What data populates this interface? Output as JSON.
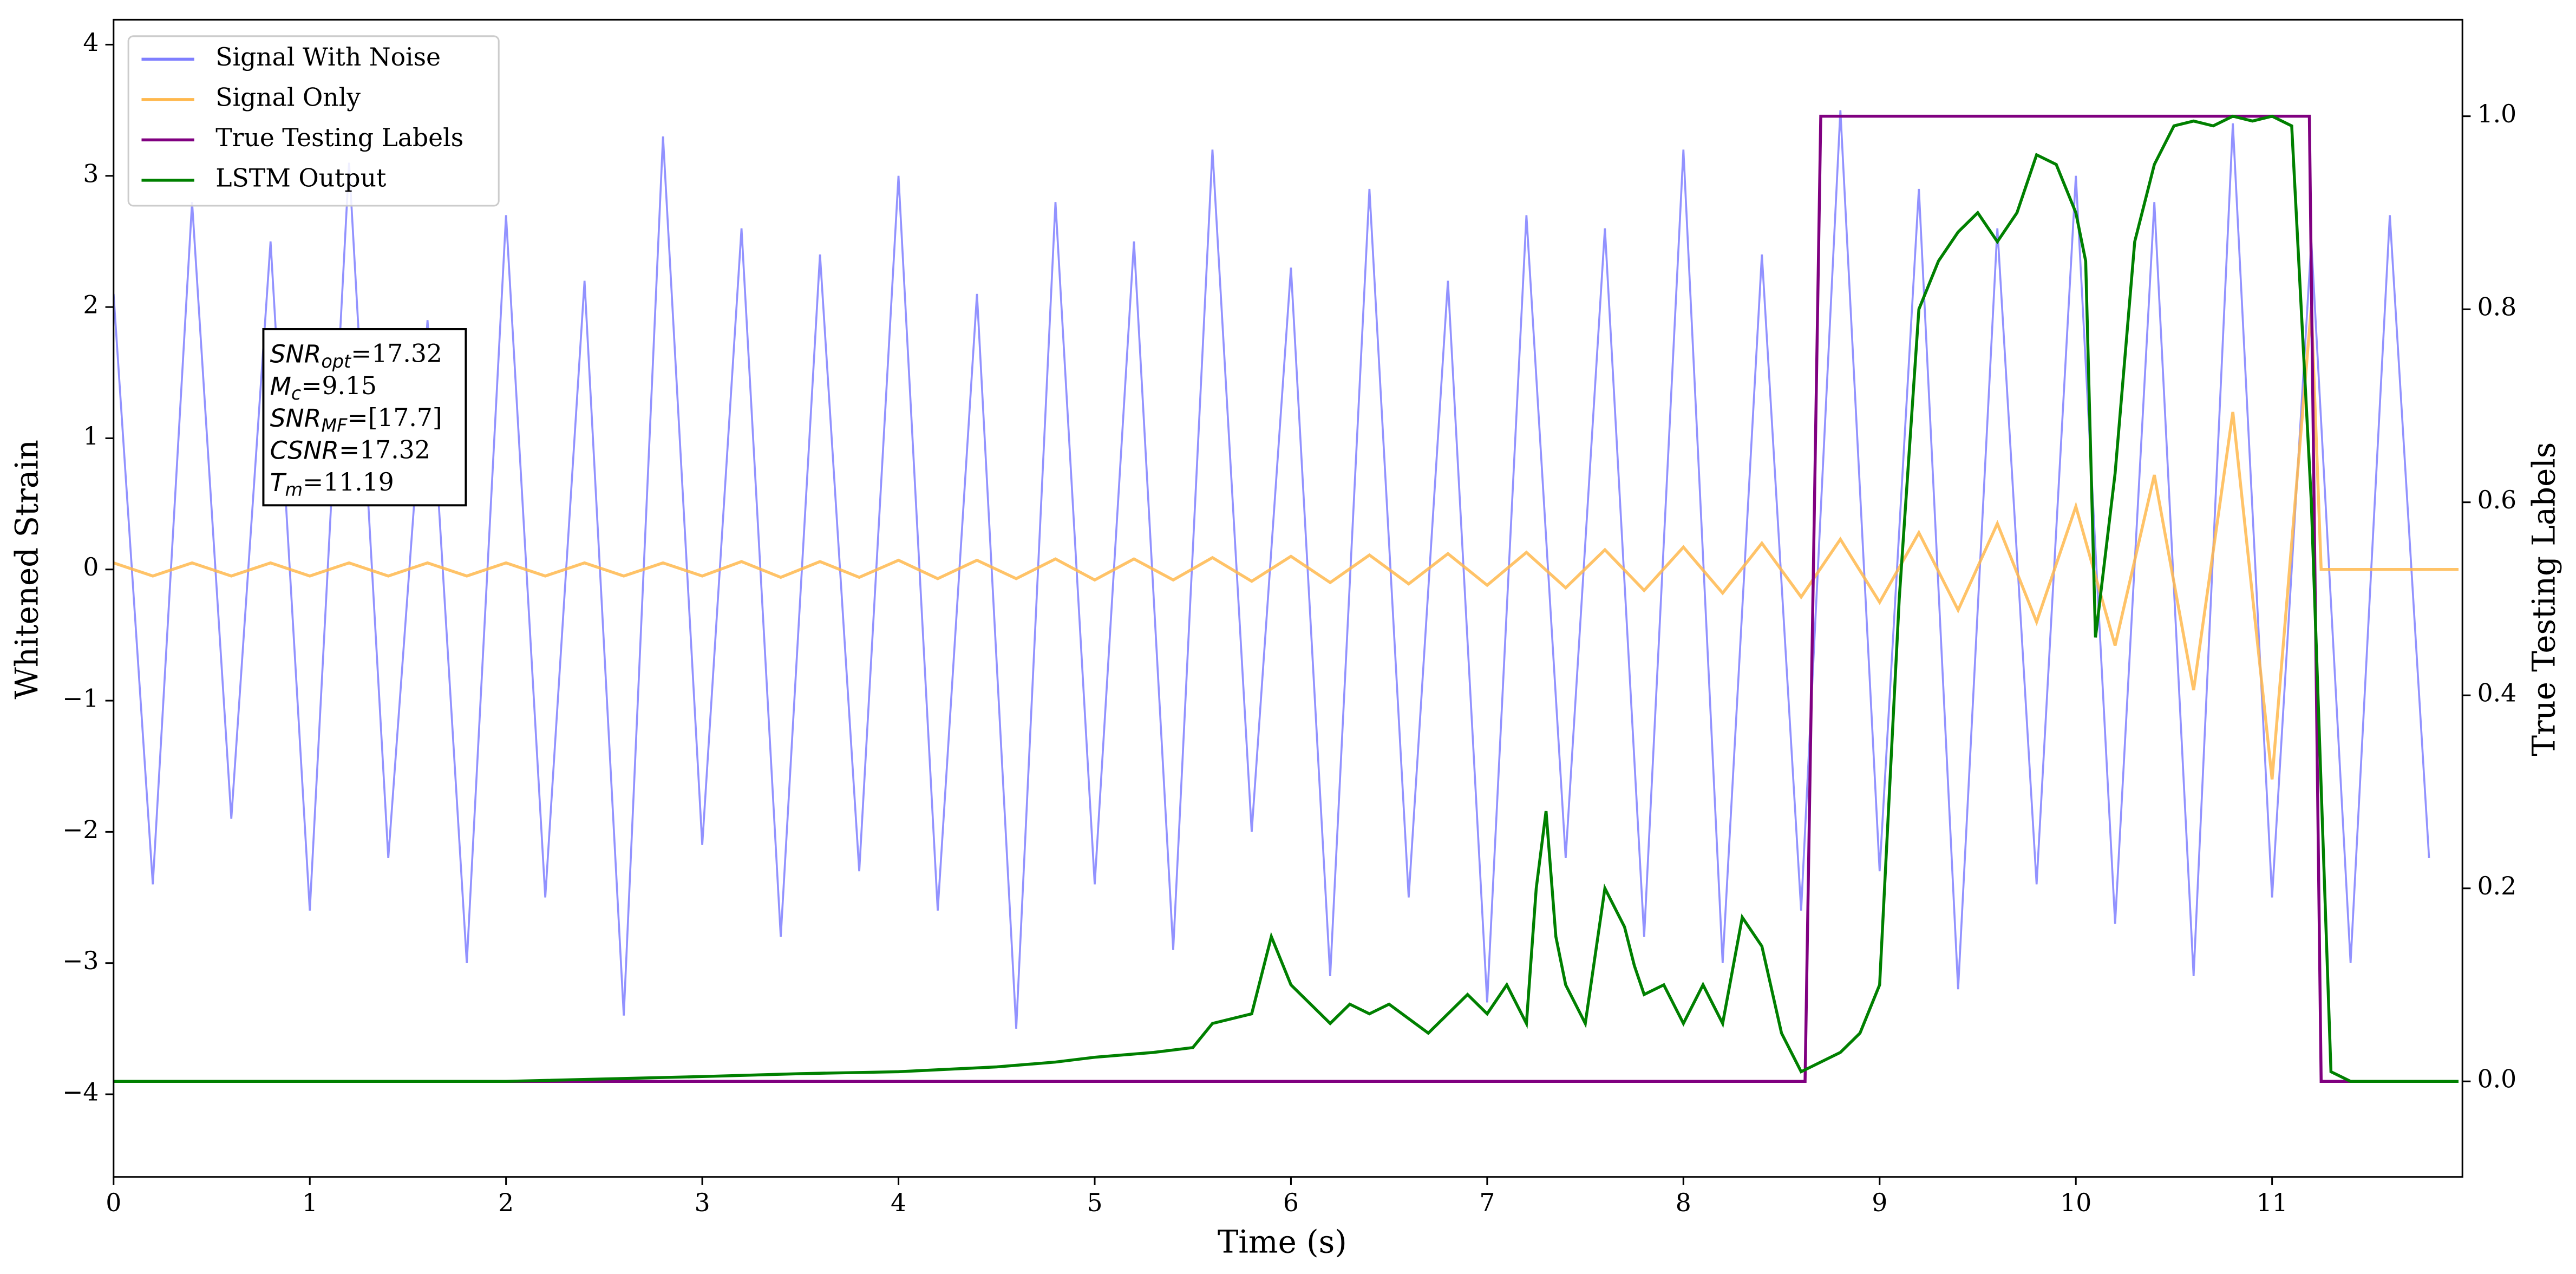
{
  "chart_data": {
    "type": "line",
    "xlabel": "Time (s)",
    "ylabel": "Whitened Strain",
    "y2label": "True Testing Labels",
    "xlim": [
      0,
      11.97
    ],
    "xticks": [
      0,
      1,
      2,
      3,
      4,
      5,
      6,
      7,
      8,
      9,
      10,
      11
    ],
    "ylim": [
      -4.63,
      4.19
    ],
    "yticks": [
      {
        "value": -4,
        "label": "−4"
      },
      {
        "value": -3,
        "label": "−3"
      },
      {
        "value": -2,
        "label": "−2"
      },
      {
        "value": -1,
        "label": "−1"
      },
      0,
      1,
      2,
      3,
      4
    ],
    "y2lim": [
      -0.099,
      1.1
    ],
    "y2ticks": [
      {
        "value": 0,
        "label": "0.0"
      },
      {
        "value": 0.2,
        "label": "0.2"
      },
      {
        "value": 0.4,
        "label": "0.4"
      },
      {
        "value": 0.6,
        "label": "0.6"
      },
      {
        "value": 0.8,
        "label": "0.8"
      },
      {
        "value": 1,
        "label": "1.0"
      }
    ],
    "legend": "upper left",
    "annotation": [
      {
        "symbol": "SNR",
        "sub": "opt",
        "text": "=17.32"
      },
      {
        "symbol": "M",
        "sub": "c",
        "text": "=9.15"
      },
      {
        "symbol": "SNR",
        "sub": "MF",
        "text": "=[17.7]"
      },
      {
        "symbol": "CSNR",
        "sub": null,
        "text": "=17.32"
      },
      {
        "symbol": "T",
        "sub": "m",
        "text": "=11.19"
      }
    ],
    "series": [
      {
        "name": "Signal With Noise",
        "color": "#7f7fff",
        "axis": "y",
        "x": [
          0,
          0.2,
          0.4,
          0.6,
          0.8,
          1,
          1.2,
          1.4,
          1.6,
          1.8,
          2,
          2.2,
          2.4,
          2.6,
          2.8,
          3,
          3.2,
          3.4,
          3.6,
          3.8,
          4,
          4.2,
          4.4,
          4.6,
          4.8,
          5,
          5.2,
          5.4,
          5.6,
          5.8,
          6,
          6.2,
          6.4,
          6.6,
          6.8,
          7,
          7.2,
          7.4,
          7.6,
          7.8,
          8,
          8.2,
          8.4,
          8.6,
          8.8,
          9,
          9.2,
          9.4,
          9.6,
          9.8,
          10,
          10.2,
          10.4,
          10.6,
          10.8,
          11,
          11.2,
          11.4,
          11.6,
          11.8
        ],
        "values": [
          2.1,
          -2.4,
          2.8,
          -1.9,
          2.5,
          -2.6,
          3.1,
          -2.2,
          1.9,
          -3.0,
          2.7,
          -2.5,
          2.2,
          -3.4,
          3.3,
          -2.1,
          2.6,
          -2.8,
          2.4,
          -2.3,
          3.0,
          -2.6,
          2.1,
          -3.5,
          2.8,
          -2.4,
          2.5,
          -2.9,
          3.2,
          -2.0,
          2.3,
          -3.1,
          2.9,
          -2.5,
          2.2,
          -3.3,
          2.7,
          -2.2,
          2.6,
          -2.8,
          3.2,
          -3.0,
          2.4,
          -2.6,
          3.5,
          -2.3,
          2.9,
          -3.2,
          2.6,
          -2.4,
          3.0,
          -2.7,
          2.8,
          -3.1,
          3.4,
          -2.5,
          2.5,
          -3.0,
          2.7,
          -2.2
        ]
      },
      {
        "name": "Signal Only",
        "color": "#ffb84d",
        "axis": "y",
        "x": [
          0,
          0.2,
          0.4,
          0.6,
          0.8,
          1,
          1.2,
          1.4,
          1.6,
          1.8,
          2,
          2.2,
          2.4,
          2.6,
          2.8,
          3,
          3.2,
          3.4,
          3.6,
          3.8,
          4,
          4.2,
          4.4,
          4.6,
          4.8,
          5,
          5.2,
          5.4,
          5.6,
          5.8,
          6,
          6.2,
          6.4,
          6.6,
          6.8,
          7,
          7.2,
          7.4,
          7.6,
          7.8,
          8,
          8.2,
          8.4,
          8.6,
          8.8,
          9,
          9.2,
          9.4,
          9.6,
          9.8,
          10,
          10.2,
          10.4,
          10.6,
          10.8,
          11,
          11.2,
          11.25,
          11.95
        ],
        "values": [
          0.05,
          -0.05,
          0.05,
          -0.05,
          0.05,
          -0.05,
          0.05,
          -0.05,
          0.05,
          -0.05,
          0.05,
          -0.05,
          0.05,
          -0.05,
          0.05,
          -0.05,
          0.06,
          -0.06,
          0.06,
          -0.06,
          0.07,
          -0.07,
          0.07,
          -0.07,
          0.08,
          -0.08,
          0.08,
          -0.08,
          0.09,
          -0.09,
          0.1,
          -0.1,
          0.11,
          -0.11,
          0.12,
          -0.12,
          0.13,
          -0.14,
          0.15,
          -0.16,
          0.17,
          -0.18,
          0.2,
          -0.21,
          0.23,
          -0.25,
          0.28,
          -0.31,
          0.35,
          -0.4,
          0.48,
          -0.58,
          0.72,
          -0.92,
          1.2,
          -1.6,
          2.0,
          0,
          0
        ]
      },
      {
        "name": "True Testing Labels",
        "color": "purple",
        "axis": "y2",
        "x": [
          0,
          8.62,
          8.7,
          11.19,
          11.25,
          11.95
        ],
        "values": [
          0,
          0,
          1,
          1,
          0,
          0
        ]
      },
      {
        "name": "LSTM Output",
        "color": "green",
        "axis": "y2",
        "x": [
          0,
          1,
          2,
          3,
          3.5,
          4,
          4.5,
          4.8,
          5,
          5.3,
          5.5,
          5.6,
          5.8,
          5.9,
          6,
          6.2,
          6.3,
          6.4,
          6.5,
          6.7,
          6.9,
          7,
          7.1,
          7.2,
          7.25,
          7.3,
          7.35,
          7.4,
          7.5,
          7.6,
          7.7,
          7.75,
          7.8,
          7.9,
          8,
          8.1,
          8.2,
          8.3,
          8.4,
          8.5,
          8.6,
          8.7,
          8.8,
          8.9,
          9,
          9.1,
          9.2,
          9.3,
          9.4,
          9.5,
          9.6,
          9.7,
          9.8,
          9.9,
          10,
          10.05,
          10.1,
          10.2,
          10.3,
          10.4,
          10.5,
          10.6,
          10.7,
          10.8,
          10.9,
          11,
          11.1,
          11.2,
          11.3,
          11.4,
          11.95
        ],
        "values": [
          0,
          0,
          0,
          0.005,
          0.008,
          0.01,
          0.015,
          0.02,
          0.025,
          0.03,
          0.035,
          0.06,
          0.07,
          0.15,
          0.1,
          0.06,
          0.08,
          0.07,
          0.08,
          0.05,
          0.09,
          0.07,
          0.1,
          0.06,
          0.2,
          0.28,
          0.15,
          0.1,
          0.06,
          0.2,
          0.16,
          0.12,
          0.09,
          0.1,
          0.06,
          0.1,
          0.06,
          0.17,
          0.14,
          0.05,
          0.01,
          0.02,
          0.03,
          0.05,
          0.1,
          0.5,
          0.8,
          0.85,
          0.88,
          0.9,
          0.87,
          0.9,
          0.96,
          0.95,
          0.9,
          0.85,
          0.46,
          0.63,
          0.87,
          0.95,
          0.99,
          0.995,
          0.99,
          1.0,
          0.995,
          1.0,
          0.99,
          0.6,
          0.01,
          0.0,
          0.0
        ]
      }
    ]
  }
}
